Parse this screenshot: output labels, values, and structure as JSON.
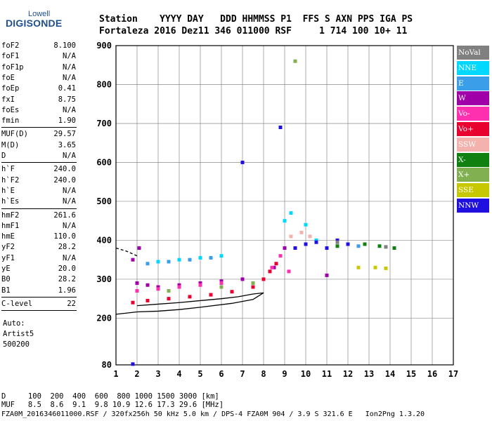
{
  "logo": {
    "top": "Lowell",
    "main": "DIGISONDE"
  },
  "header": {
    "row1": "Station    YYYY DAY   DDD HHMMSS P1  FFS S AXN PPS IGA PS",
    "row2": "Fortaleza 2016 Dez11 346 011000 RSF     1 714 100 10+ 11"
  },
  "params": {
    "group1": [
      {
        "name": "foF2",
        "value": "8.100"
      },
      {
        "name": "foF1",
        "value": "N/A"
      },
      {
        "name": "foF1p",
        "value": "N/A"
      },
      {
        "name": "foE",
        "value": "N/A"
      },
      {
        "name": "foEp",
        "value": "0.41"
      },
      {
        "name": "fxI",
        "value": "8.75"
      },
      {
        "name": "foEs",
        "value": "N/A"
      },
      {
        "name": "fmin",
        "value": "1.90"
      }
    ],
    "group2": [
      {
        "name": "MUF(D)",
        "value": "29.57"
      },
      {
        "name": "M(D)",
        "value": "3.65"
      },
      {
        "name": "D",
        "value": "N/A"
      }
    ],
    "group3": [
      {
        "name": "h`F",
        "value": "240.0"
      },
      {
        "name": "h`F2",
        "value": "240.0"
      },
      {
        "name": "h`E",
        "value": "N/A"
      },
      {
        "name": "h`Es",
        "value": "N/A"
      }
    ],
    "group4": [
      {
        "name": "hmF2",
        "value": "261.6"
      },
      {
        "name": "hmF1",
        "value": "N/A"
      },
      {
        "name": "hmE",
        "value": "110.0"
      },
      {
        "name": "yF2",
        "value": "28.2"
      },
      {
        "name": "yF1",
        "value": "N/A"
      },
      {
        "name": "yE",
        "value": "20.0"
      },
      {
        "name": "B0",
        "value": "28.2"
      },
      {
        "name": "B1",
        "value": "1.96"
      }
    ],
    "group5": [
      {
        "name": "C-level",
        "value": "22"
      }
    ],
    "auto_label": "Auto:",
    "auto_name": "Artist5",
    "auto_version": "500200"
  },
  "legend": [
    {
      "label": "NoVal",
      "color": "#808080"
    },
    {
      "label": "NNE",
      "color": "#00d8ff"
    },
    {
      "label": "E",
      "color": "#3a9ee8"
    },
    {
      "label": "W",
      "color": "#a000a8"
    },
    {
      "label": "Vo-",
      "color": "#ff30b0"
    },
    {
      "label": "Vo+",
      "color": "#e8002e"
    },
    {
      "label": "SSW",
      "color": "#f4b2ae"
    },
    {
      "label": "X-",
      "color": "#108010"
    },
    {
      "label": "X+",
      "color": "#80b050"
    },
    {
      "label": "SSE",
      "color": "#c8c800"
    },
    {
      "label": "NNW",
      "color": "#2010e0"
    }
  ],
  "footer": {
    "row1": "D     100  200  400  600  800 1000 1500 3000 [km]",
    "row2": "MUF   8.5  8.6  9.1  9.8 10.9 12.6 17.3 29.6 [MHz]",
    "row3": "FZA0M_2016346011000.RSF / 320fx256h 50 kHz 5.0 km / DPS-4 FZA0M 904 / 3.9 S 321.6 E   Ion2Png 1.3.20"
  },
  "chart_data": {
    "type": "scatter",
    "xlim": [
      1,
      17
    ],
    "ylim": [
      80,
      900
    ],
    "xticks": [
      "1",
      "2",
      "3",
      "4",
      "5",
      "6",
      "7",
      "8",
      "9",
      "10",
      "11",
      "12",
      "13",
      "14",
      "15",
      "16",
      "17"
    ],
    "yticks": [
      "80",
      "200",
      "300",
      "400",
      "500",
      "600",
      "700",
      "800",
      "900"
    ],
    "grid": true,
    "series": [
      {
        "name": "Vo+",
        "color": "#e8002e",
        "points": [
          [
            1.8,
            240
          ],
          [
            2.5,
            245
          ],
          [
            3.5,
            250
          ],
          [
            4.5,
            255
          ],
          [
            5.5,
            260
          ],
          [
            6.5,
            268
          ],
          [
            7.5,
            280
          ],
          [
            8.0,
            300
          ],
          [
            8.3,
            320
          ],
          [
            8.6,
            340
          ]
        ]
      },
      {
        "name": "W",
        "color": "#a000a8",
        "points": [
          [
            2.0,
            290
          ],
          [
            2.5,
            285
          ],
          [
            3.0,
            280
          ],
          [
            4.0,
            285
          ],
          [
            5.0,
            290
          ],
          [
            6.0,
            295
          ],
          [
            7.0,
            300
          ],
          [
            8.5,
            330
          ],
          [
            9.0,
            380
          ],
          [
            11.0,
            310
          ],
          [
            1.8,
            350
          ],
          [
            2.1,
            380
          ]
        ]
      },
      {
        "name": "Vo-",
        "color": "#ff30b0",
        "points": [
          [
            2.0,
            270
          ],
          [
            3.0,
            275
          ],
          [
            4.0,
            280
          ],
          [
            5.0,
            285
          ],
          [
            6.0,
            290
          ],
          [
            8.4,
            330
          ],
          [
            8.8,
            360
          ],
          [
            9.2,
            320
          ]
        ]
      },
      {
        "name": "NNE",
        "color": "#00d8ff",
        "points": [
          [
            3.0,
            345
          ],
          [
            4.0,
            350
          ],
          [
            5.0,
            355
          ],
          [
            6.0,
            360
          ],
          [
            9.0,
            450
          ],
          [
            9.3,
            470
          ],
          [
            10.0,
            440
          ],
          [
            10.5,
            400
          ]
        ]
      },
      {
        "name": "E",
        "color": "#3a9ee8",
        "points": [
          [
            2.5,
            340
          ],
          [
            3.5,
            345
          ],
          [
            4.5,
            350
          ],
          [
            5.5,
            355
          ],
          [
            12.0,
            390
          ],
          [
            12.5,
            385
          ]
        ]
      },
      {
        "name": "NNW",
        "color": "#2010e0",
        "points": [
          [
            9.5,
            380
          ],
          [
            10.0,
            390
          ],
          [
            10.5,
            395
          ],
          [
            11.0,
            380
          ],
          [
            11.5,
            400
          ],
          [
            12.0,
            390
          ],
          [
            8.8,
            690
          ],
          [
            7.0,
            600
          ],
          [
            1.8,
            82
          ]
        ]
      },
      {
        "name": "X-",
        "color": "#108010",
        "points": [
          [
            11.5,
            385
          ],
          [
            12.8,
            390
          ],
          [
            13.5,
            385
          ],
          [
            14.2,
            380
          ]
        ]
      },
      {
        "name": "X+",
        "color": "#80b050",
        "points": [
          [
            3.5,
            270
          ],
          [
            6.0,
            280
          ],
          [
            7.5,
            290
          ],
          [
            9.5,
            860
          ]
        ]
      },
      {
        "name": "SSW",
        "color": "#f4b2ae",
        "points": [
          [
            9.3,
            410
          ],
          [
            9.8,
            420
          ],
          [
            10.2,
            410
          ]
        ]
      },
      {
        "name": "SSE",
        "color": "#c8c800",
        "points": [
          [
            12.5,
            330
          ],
          [
            13.3,
            330
          ],
          [
            13.8,
            328
          ]
        ]
      },
      {
        "name": "NoVal",
        "color": "#808080",
        "points": [
          [
            11.5,
            395
          ],
          [
            13.8,
            383
          ]
        ]
      }
    ],
    "trace": [
      [
        2.0,
        232
      ],
      [
        3.0,
        236
      ],
      [
        4.0,
        240
      ],
      [
        5.0,
        245
      ],
      [
        6.0,
        250
      ],
      [
        6.8,
        255
      ],
      [
        7.5,
        262
      ],
      [
        8.0,
        265
      ],
      [
        7.5,
        248
      ],
      [
        6.5,
        238
      ],
      [
        5.0,
        228
      ],
      [
        4.0,
        222
      ],
      [
        3.0,
        218
      ],
      [
        2.0,
        216
      ],
      [
        1.0,
        210
      ]
    ],
    "trace2": [
      [
        1.0,
        380
      ],
      [
        1.5,
        372
      ],
      [
        2.0,
        360
      ]
    ]
  }
}
